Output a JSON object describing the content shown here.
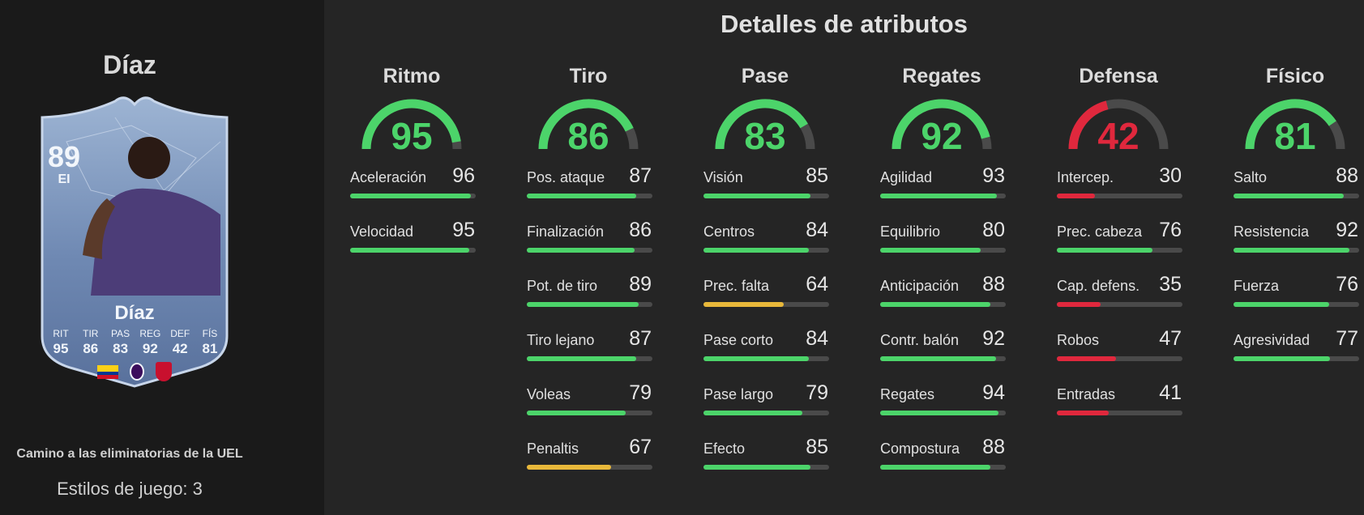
{
  "player": {
    "name": "Díaz",
    "card": {
      "rating": "89",
      "position": "EI",
      "name": "Díaz",
      "stats": [
        {
          "label": "RIT",
          "value": "95"
        },
        {
          "label": "TIR",
          "value": "86"
        },
        {
          "label": "PAS",
          "value": "83"
        },
        {
          "label": "REG",
          "value": "92"
        },
        {
          "label": "DEF",
          "value": "42"
        },
        {
          "label": "FÍS",
          "value": "81"
        }
      ],
      "nation_icon": "colombia-flag-icon",
      "league_icon": "premier-league-icon",
      "club_icon": "liverpool-crest-icon"
    },
    "program": "Camino a las eliminatorias de la UEL",
    "playstyles": "Estilos de juego: 3"
  },
  "colors": {
    "green": "#4cd46a",
    "red": "#e0283d",
    "yellow": "#e8b83a",
    "track": "#4a4a4a"
  },
  "attributes": {
    "title": "Detalles de atributos",
    "categories": [
      {
        "name": "Ritmo",
        "value": 95,
        "color": "green",
        "stats": [
          {
            "name": "Aceleración",
            "value": 96,
            "color": "green"
          },
          {
            "name": "Velocidad",
            "value": 95,
            "color": "green"
          }
        ]
      },
      {
        "name": "Tiro",
        "value": 86,
        "color": "green",
        "stats": [
          {
            "name": "Pos. ataque",
            "value": 87,
            "color": "green"
          },
          {
            "name": "Finalización",
            "value": 86,
            "color": "green"
          },
          {
            "name": "Pot. de tiro",
            "value": 89,
            "color": "green"
          },
          {
            "name": "Tiro lejano",
            "value": 87,
            "color": "green"
          },
          {
            "name": "Voleas",
            "value": 79,
            "color": "green"
          },
          {
            "name": "Penaltis",
            "value": 67,
            "color": "yellow"
          }
        ]
      },
      {
        "name": "Pase",
        "value": 83,
        "color": "green",
        "stats": [
          {
            "name": "Visión",
            "value": 85,
            "color": "green"
          },
          {
            "name": "Centros",
            "value": 84,
            "color": "green"
          },
          {
            "name": "Prec. falta",
            "value": 64,
            "color": "yellow"
          },
          {
            "name": "Pase corto",
            "value": 84,
            "color": "green"
          },
          {
            "name": "Pase largo",
            "value": 79,
            "color": "green"
          },
          {
            "name": "Efecto",
            "value": 85,
            "color": "green"
          }
        ]
      },
      {
        "name": "Regates",
        "value": 92,
        "color": "green",
        "stats": [
          {
            "name": "Agilidad",
            "value": 93,
            "color": "green"
          },
          {
            "name": "Equilibrio",
            "value": 80,
            "color": "green"
          },
          {
            "name": "Anticipación",
            "value": 88,
            "color": "green"
          },
          {
            "name": "Contr. balón",
            "value": 92,
            "color": "green"
          },
          {
            "name": "Regates",
            "value": 94,
            "color": "green"
          },
          {
            "name": "Compostura",
            "value": 88,
            "color": "green"
          }
        ]
      },
      {
        "name": "Defensa",
        "value": 42,
        "color": "red",
        "stats": [
          {
            "name": "Intercep.",
            "value": 30,
            "color": "red"
          },
          {
            "name": "Prec. cabeza",
            "value": 76,
            "color": "green"
          },
          {
            "name": "Cap. defens.",
            "value": 35,
            "color": "red"
          },
          {
            "name": "Robos",
            "value": 47,
            "color": "red"
          },
          {
            "name": "Entradas",
            "value": 41,
            "color": "red"
          }
        ]
      },
      {
        "name": "Físico",
        "value": 81,
        "color": "green",
        "stats": [
          {
            "name": "Salto",
            "value": 88,
            "color": "green"
          },
          {
            "name": "Resistencia",
            "value": 92,
            "color": "green"
          },
          {
            "name": "Fuerza",
            "value": 76,
            "color": "green"
          },
          {
            "name": "Agresividad",
            "value": 77,
            "color": "green"
          }
        ]
      }
    ]
  }
}
